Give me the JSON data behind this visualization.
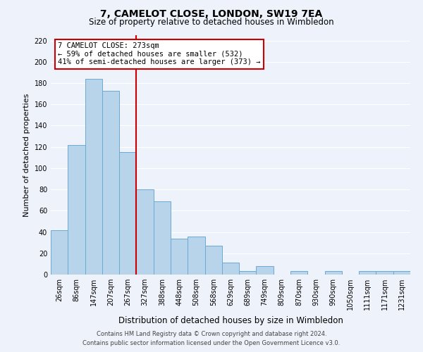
{
  "title": "7, CAMELOT CLOSE, LONDON, SW19 7EA",
  "subtitle": "Size of property relative to detached houses in Wimbledon",
  "xlabel": "Distribution of detached houses by size in Wimbledon",
  "ylabel": "Number of detached properties",
  "bar_labels": [
    "26sqm",
    "86sqm",
    "147sqm",
    "207sqm",
    "267sqm",
    "327sqm",
    "388sqm",
    "448sqm",
    "508sqm",
    "568sqm",
    "629sqm",
    "689sqm",
    "749sqm",
    "809sqm",
    "870sqm",
    "930sqm",
    "990sqm",
    "1050sqm",
    "1111sqm",
    "1171sqm",
    "1231sqm"
  ],
  "bar_values": [
    42,
    122,
    184,
    173,
    115,
    80,
    69,
    34,
    36,
    27,
    11,
    3,
    8,
    0,
    3,
    0,
    3,
    0,
    3,
    3,
    3
  ],
  "bar_color": "#b8d4ea",
  "bar_edge_color": "#6aaad4",
  "vline_color": "#cc0000",
  "annotation_title": "7 CAMELOT CLOSE: 273sqm",
  "annotation_line1": "← 59% of detached houses are smaller (532)",
  "annotation_line2": "41% of semi-detached houses are larger (373) →",
  "annotation_box_color": "#ffffff",
  "annotation_box_edge_color": "#cc0000",
  "ylim": [
    0,
    225
  ],
  "yticks": [
    0,
    20,
    40,
    60,
    80,
    100,
    120,
    140,
    160,
    180,
    200,
    220
  ],
  "footer1": "Contains HM Land Registry data © Crown copyright and database right 2024.",
  "footer2": "Contains public sector information licensed under the Open Government Licence v3.0.",
  "bg_color": "#eef2fb",
  "grid_color": "#ffffff"
}
